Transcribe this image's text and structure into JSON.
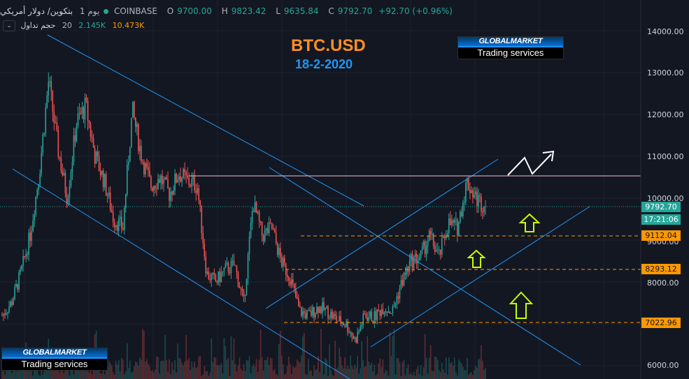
{
  "header": {
    "symbol": "بتكوين/ دولار أمريكي",
    "interval": "يوم 1",
    "exchange": "COINBASE",
    "ohlc": [
      {
        "key": "O",
        "value": "9700.00"
      },
      {
        "key": "H",
        "value": "9823.42"
      },
      {
        "key": "L",
        "value": "9635.84"
      },
      {
        "key": "C",
        "value": "9792.70"
      },
      {
        "key": "",
        "value": "+92.70 (+0.96%)"
      }
    ],
    "volume_label": "حجم تداول",
    "volume_length": "20",
    "volume_value": "2.145K",
    "volume_ma": "10.473K",
    "toggle_icon": "chevron-down-icon"
  },
  "overlay": {
    "title": "BTC.USD",
    "date": "18-2-2020",
    "logo_top": "GLOBALMARKET",
    "logo_bottom": "Trading services"
  },
  "colors": {
    "background": "#131722",
    "up": "#26a69a",
    "down": "#ef5350",
    "trendline": "#2196f3",
    "resistance": "#f8bbd0",
    "support": "#ff9800",
    "arrow": "#c6ff00",
    "title": "#ff8f26",
    "date": "#2196f3"
  },
  "price_axis": {
    "ticks": [
      "14000.00",
      "13000.00",
      "12000.00",
      "11000.00",
      "10000.00",
      "9000.00",
      "8000.00",
      "6000.00"
    ],
    "last_price": "9792.70",
    "countdown": "17:21:06",
    "levels": [
      "9112.04",
      "8293.12",
      "7022.96"
    ]
  },
  "chart_data": {
    "type": "candlestick",
    "symbol": "BTC/USD",
    "interval": "1D",
    "exchange": "COINBASE",
    "ylim": [
      6000,
      14500
    ],
    "last_close": 9792.7,
    "resistance_line": 10500,
    "support_levels": [
      9112.04,
      8293.12,
      7022.96
    ],
    "price_path": [
      7200,
      7500,
      8200,
      9100,
      10600,
      12800,
      11200,
      10000,
      11800,
      12200,
      11000,
      10400,
      9500,
      9300,
      12100,
      11000,
      10300,
      10500,
      10100,
      10600,
      10400,
      10300,
      8200,
      8000,
      8300,
      8400,
      7500,
      9900,
      9100,
      9300,
      8500,
      8100,
      7300,
      7200,
      7400,
      7300,
      7100,
      7000,
      6600,
      7200,
      7150,
      7400,
      7300,
      8000,
      8500,
      8600,
      9100,
      8600,
      9400,
      9300,
      10400,
      10000,
      9792.7
    ],
    "annotations": [
      "descending channel",
      "ascending channel",
      "breakout arrow",
      "three up arrows at support levels"
    ]
  }
}
